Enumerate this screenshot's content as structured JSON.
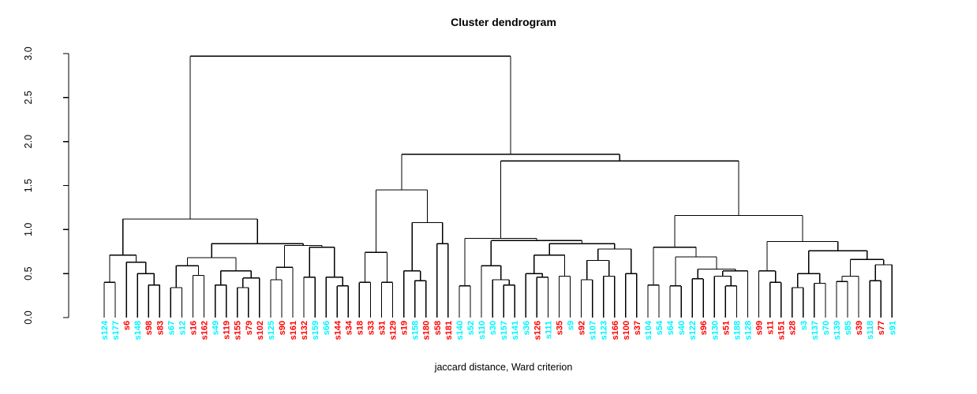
{
  "title": "Cluster dendrogram",
  "xlabel": "jaccard distance, Ward criterion",
  "colors": {
    "red": "#FF0000",
    "cyan": "#00F5FF",
    "line": "#000000",
    "background": "#FFFFFF"
  },
  "axis": {
    "ticks": [
      0.0,
      0.5,
      1.0,
      1.5,
      2.0,
      2.5,
      3.0
    ],
    "tick_labels": [
      "0.0",
      "0.5",
      "1.0",
      "1.5",
      "2.0",
      "2.5",
      "3.0"
    ],
    "ylim": [
      0,
      3
    ]
  },
  "chart_data": {
    "type": "dendrogram",
    "title": "Cluster dendrogram",
    "xlabel": "jaccard distance, Ward criterion",
    "ylabel": "",
    "ylim": [
      0,
      3
    ],
    "grid": false,
    "root_height": 2.97,
    "leaves": [
      {
        "label": "s124",
        "color": "cyan"
      },
      {
        "label": "s177",
        "color": "cyan"
      },
      {
        "label": "s6",
        "color": "red"
      },
      {
        "label": "s148",
        "color": "cyan"
      },
      {
        "label": "s98",
        "color": "red"
      },
      {
        "label": "s83",
        "color": "red"
      },
      {
        "label": "s67",
        "color": "cyan"
      },
      {
        "label": "s12",
        "color": "cyan"
      },
      {
        "label": "s16",
        "color": "red"
      },
      {
        "label": "s162",
        "color": "red"
      },
      {
        "label": "s49",
        "color": "cyan"
      },
      {
        "label": "s119",
        "color": "red"
      },
      {
        "label": "s155",
        "color": "red"
      },
      {
        "label": "s79",
        "color": "red"
      },
      {
        "label": "s102",
        "color": "red"
      },
      {
        "label": "s125",
        "color": "cyan"
      },
      {
        "label": "s90",
        "color": "red"
      },
      {
        "label": "s161",
        "color": "red"
      },
      {
        "label": "s132",
        "color": "red"
      },
      {
        "label": "s159",
        "color": "cyan"
      },
      {
        "label": "s66",
        "color": "cyan"
      },
      {
        "label": "s144",
        "color": "red"
      },
      {
        "label": "s34",
        "color": "red"
      },
      {
        "label": "s18",
        "color": "red"
      },
      {
        "label": "s33",
        "color": "red"
      },
      {
        "label": "s31",
        "color": "red"
      },
      {
        "label": "s129",
        "color": "red"
      },
      {
        "label": "s19",
        "color": "red"
      },
      {
        "label": "s158",
        "color": "cyan"
      },
      {
        "label": "s180",
        "color": "red"
      },
      {
        "label": "s58",
        "color": "red"
      },
      {
        "label": "s181",
        "color": "red"
      },
      {
        "label": "s140",
        "color": "cyan"
      },
      {
        "label": "s52",
        "color": "cyan"
      },
      {
        "label": "s110",
        "color": "cyan"
      },
      {
        "label": "s30",
        "color": "cyan"
      },
      {
        "label": "s157",
        "color": "cyan"
      },
      {
        "label": "s141",
        "color": "cyan"
      },
      {
        "label": "s36",
        "color": "cyan"
      },
      {
        "label": "s126",
        "color": "red"
      },
      {
        "label": "s111",
        "color": "cyan"
      },
      {
        "label": "s35",
        "color": "red"
      },
      {
        "label": "s9",
        "color": "cyan"
      },
      {
        "label": "s92",
        "color": "red"
      },
      {
        "label": "s107",
        "color": "cyan"
      },
      {
        "label": "s123",
        "color": "cyan"
      },
      {
        "label": "s166",
        "color": "red"
      },
      {
        "label": "s100",
        "color": "red"
      },
      {
        "label": "s37",
        "color": "red"
      },
      {
        "label": "s104",
        "color": "cyan"
      },
      {
        "label": "s54",
        "color": "cyan"
      },
      {
        "label": "s64",
        "color": "cyan"
      },
      {
        "label": "s40",
        "color": "cyan"
      },
      {
        "label": "s122",
        "color": "cyan"
      },
      {
        "label": "s96",
        "color": "red"
      },
      {
        "label": "s130",
        "color": "cyan"
      },
      {
        "label": "s51",
        "color": "red"
      },
      {
        "label": "s188",
        "color": "cyan"
      },
      {
        "label": "s128",
        "color": "cyan"
      },
      {
        "label": "s99",
        "color": "red"
      },
      {
        "label": "s11",
        "color": "red"
      },
      {
        "label": "s151",
        "color": "red"
      },
      {
        "label": "s28",
        "color": "red"
      },
      {
        "label": "s3",
        "color": "cyan"
      },
      {
        "label": "s137",
        "color": "cyan"
      },
      {
        "label": "s70",
        "color": "cyan"
      },
      {
        "label": "s139",
        "color": "cyan"
      },
      {
        "label": "s85",
        "color": "cyan"
      },
      {
        "label": "s39",
        "color": "red"
      },
      {
        "label": "s118",
        "color": "cyan"
      },
      {
        "label": "s77",
        "color": "red"
      },
      {
        "label": "s91",
        "color": "cyan"
      }
    ],
    "tree": {
      "h": 2.97,
      "c": [
        {
          "h": 1.12,
          "c": [
            {
              "h": 0.71,
              "c": [
                {
                  "h": 0.4,
                  "c": [
                    "s124",
                    "s177"
                  ]
                },
                {
                  "h": 0.63,
                  "c": [
                    "s6",
                    {
                      "h": 0.5,
                      "c": [
                        "s148",
                        {
                          "h": 0.37,
                          "c": [
                            "s98",
                            "s83"
                          ]
                        }
                      ]
                    }
                  ]
                }
              ]
            },
            {
              "h": 0.84,
              "c": [
                {
                  "h": 0.68,
                  "c": [
                    {
                      "h": 0.59,
                      "c": [
                        {
                          "h": 0.34,
                          "c": [
                            "s67",
                            "s12"
                          ]
                        },
                        {
                          "h": 0.48,
                          "c": [
                            "s16",
                            "s162"
                          ]
                        }
                      ]
                    },
                    {
                      "h": 0.53,
                      "c": [
                        {
                          "h": 0.37,
                          "c": [
                            "s49",
                            "s119"
                          ]
                        },
                        {
                          "h": 0.45,
                          "c": [
                            {
                              "h": 0.34,
                              "c": [
                                "s155",
                                "s79"
                              ]
                            },
                            "s102"
                          ]
                        }
                      ]
                    }
                  ]
                },
                {
                  "h": 0.82,
                  "c": [
                    {
                      "h": 0.57,
                      "c": [
                        {
                          "h": 0.43,
                          "c": [
                            "s125",
                            "s90"
                          ]
                        },
                        "s161"
                      ]
                    },
                    {
                      "h": 0.8,
                      "c": [
                        {
                          "h": 0.46,
                          "c": [
                            "s132",
                            "s159"
                          ]
                        },
                        {
                          "h": 0.46,
                          "c": [
                            "s66",
                            {
                              "h": 0.36,
                              "c": [
                                "s144",
                                "s34"
                              ]
                            }
                          ]
                        }
                      ]
                    }
                  ]
                }
              ]
            }
          ]
        },
        {
          "h": 1.855,
          "c": [
            {
              "h": 1.45,
              "c": [
                {
                  "h": 0.74,
                  "c": [
                    {
                      "h": 0.4,
                      "c": [
                        "s18",
                        "s33"
                      ]
                    },
                    {
                      "h": 0.4,
                      "c": [
                        "s31",
                        "s129"
                      ]
                    }
                  ]
                },
                {
                  "h": 1.08,
                  "c": [
                    {
                      "h": 0.53,
                      "c": [
                        "s19",
                        {
                          "h": 0.42,
                          "c": [
                            "s158",
                            "s180"
                          ]
                        }
                      ]
                    },
                    {
                      "h": 0.84,
                      "c": [
                        "s58",
                        "s181"
                      ]
                    }
                  ]
                }
              ]
            },
            {
              "h": 1.78,
              "c": [
                {
                  "h": 0.9,
                  "c": [
                    {
                      "h": 0.36,
                      "c": [
                        "s140",
                        "s52"
                      ]
                    },
                    {
                      "h": 0.875,
                      "c": [
                        {
                          "h": 0.59,
                          "c": [
                            "s110",
                            {
                              "h": 0.43,
                              "c": [
                                "s30",
                                {
                                  "h": 0.37,
                                  "c": [
                                    "s157",
                                    "s141"
                                  ]
                                }
                              ]
                            }
                          ]
                        },
                        {
                          "h": 0.84,
                          "c": [
                            {
                              "h": 0.71,
                              "c": [
                                {
                                  "h": 0.5,
                                  "c": [
                                    "s36",
                                    {
                                      "h": 0.46,
                                      "c": [
                                        "s126",
                                        "s111"
                                      ]
                                    }
                                  ]
                                },
                                {
                                  "h": 0.47,
                                  "c": [
                                    "s35",
                                    "s9"
                                  ]
                                }
                              ]
                            },
                            {
                              "h": 0.78,
                              "c": [
                                {
                                  "h": 0.65,
                                  "c": [
                                    {
                                      "h": 0.43,
                                      "c": [
                                        "s92",
                                        "s107"
                                      ]
                                    },
                                    {
                                      "h": 0.47,
                                      "c": [
                                        "s123",
                                        "s166"
                                      ]
                                    }
                                  ]
                                },
                                {
                                  "h": 0.5,
                                  "c": [
                                    "s100",
                                    "s37"
                                  ]
                                }
                              ]
                            }
                          ]
                        }
                      ]
                    }
                  ]
                },
                {
                  "h": 1.16,
                  "c": [
                    {
                      "h": 0.8,
                      "c": [
                        {
                          "h": 0.37,
                          "c": [
                            "s104",
                            "s54"
                          ]
                        },
                        {
                          "h": 0.69,
                          "c": [
                            {
                              "h": 0.36,
                              "c": [
                                "s64",
                                "s40"
                              ]
                            },
                            {
                              "h": 0.55,
                              "c": [
                                {
                                  "h": 0.44,
                                  "c": [
                                    "s122",
                                    "s96"
                                  ]
                                },
                                {
                                  "h": 0.53,
                                  "c": [
                                    {
                                      "h": 0.47,
                                      "c": [
                                        "s130",
                                        {
                                          "h": 0.36,
                                          "c": [
                                            "s51",
                                            "s188"
                                          ]
                                        }
                                      ]
                                    },
                                    "s128"
                                  ]
                                }
                              ]
                            }
                          ]
                        }
                      ]
                    },
                    {
                      "h": 0.865,
                      "c": [
                        {
                          "h": 0.53,
                          "c": [
                            "s99",
                            {
                              "h": 0.4,
                              "c": [
                                "s11",
                                "s151"
                              ]
                            }
                          ]
                        },
                        {
                          "h": 0.76,
                          "c": [
                            {
                              "h": 0.5,
                              "c": [
                                {
                                  "h": 0.34,
                                  "c": [
                                    "s28",
                                    "s3"
                                  ]
                                },
                                {
                                  "h": 0.39,
                                  "c": [
                                    "s137",
                                    "s70"
                                  ]
                                }
                              ]
                            },
                            {
                              "h": 0.66,
                              "c": [
                                {
                                  "h": 0.47,
                                  "c": [
                                    {
                                      "h": 0.41,
                                      "c": [
                                        "s139",
                                        "s85"
                                      ]
                                    },
                                    "s39"
                                  ]
                                },
                                {
                                  "h": 0.6,
                                  "c": [
                                    {
                                      "h": 0.42,
                                      "c": [
                                        "s118",
                                        "s77"
                                      ]
                                    },
                                    "s91"
                                  ]
                                }
                              ]
                            }
                          ]
                        }
                      ]
                    }
                  ]
                }
              ]
            }
          ]
        }
      ]
    }
  }
}
